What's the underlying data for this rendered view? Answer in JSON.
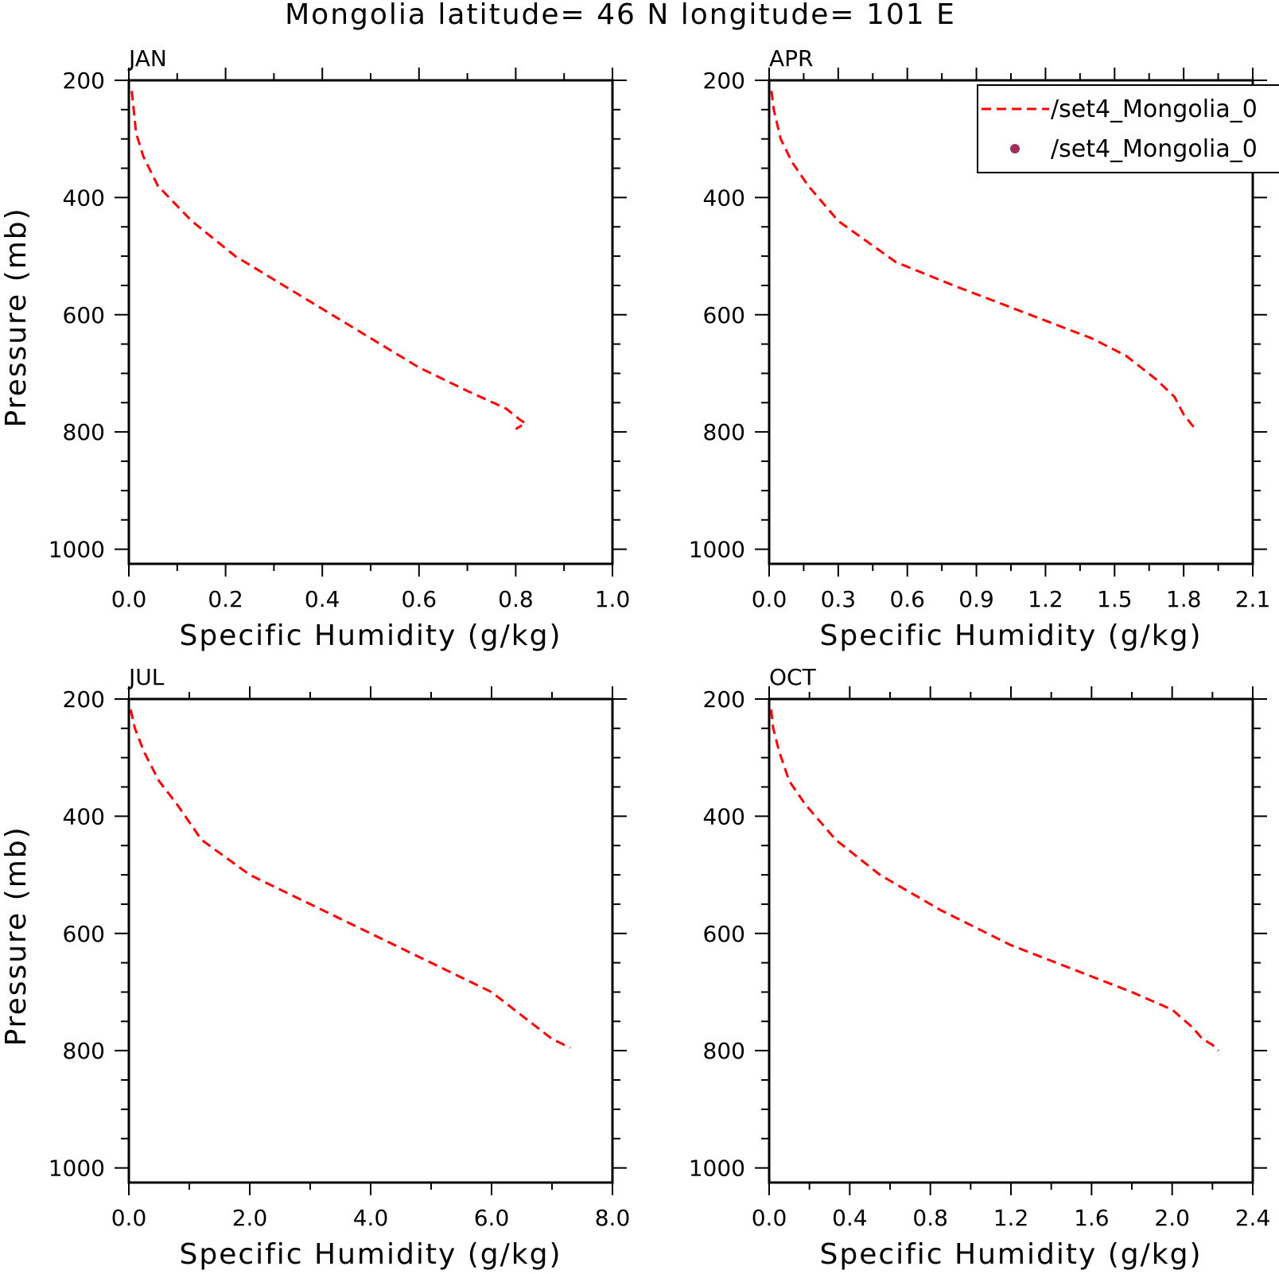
{
  "figure": {
    "title": "Mongolia  latitude= 46 N longitude= 101 E"
  },
  "legend": {
    "entries": [
      {
        "label": "/set4_Mongolia_0",
        "style": "dashed-line",
        "color": "#ff0000"
      },
      {
        "label": "/set4_Mongolia_0",
        "style": "dot",
        "color": "#a0305a"
      }
    ]
  },
  "chart_data": [
    {
      "type": "line",
      "panel": "JAN",
      "xlabel": "Specific Humidity (g/kg)",
      "ylabel": "Pressure (mb)",
      "xlim": [
        0.0,
        1.0
      ],
      "ylim": [
        1000,
        200
      ],
      "xticks": [
        "0.0",
        "0.2",
        "0.4",
        "0.6",
        "0.8",
        "1.0"
      ],
      "yticks": [
        "200",
        "400",
        "600",
        "800",
        "1000"
      ],
      "series": [
        {
          "color": "#ff0000",
          "style": "dashed",
          "points": [
            [
              0.006,
              218
            ],
            [
              0.01,
              250
            ],
            [
              0.015,
              290
            ],
            [
              0.03,
              330
            ],
            [
              0.06,
              380
            ],
            [
              0.13,
              440
            ],
            [
              0.22,
              500
            ],
            [
              0.3,
              540
            ],
            [
              0.4,
              590
            ],
            [
              0.5,
              640
            ],
            [
              0.6,
              690
            ],
            [
              0.7,
              730
            ],
            [
              0.78,
              760
            ],
            [
              0.81,
              780
            ],
            [
              0.82,
              785
            ],
            [
              0.8,
              795
            ]
          ]
        }
      ]
    },
    {
      "type": "line",
      "panel": "APR",
      "xlabel": "Specific Humidity (g/kg)",
      "ylabel": "",
      "xlim": [
        0.0,
        2.1
      ],
      "ylim": [
        1000,
        200
      ],
      "xticks": [
        "0.0",
        "0.3",
        "0.6",
        "0.9",
        "1.2",
        "1.5",
        "1.8",
        "2.1"
      ],
      "yticks": [
        "200",
        "400",
        "600",
        "800",
        "1000"
      ],
      "series": [
        {
          "color": "#ff0000",
          "style": "dashed",
          "points": [
            [
              0.01,
              218
            ],
            [
              0.02,
              250
            ],
            [
              0.05,
              300
            ],
            [
              0.1,
              340
            ],
            [
              0.17,
              380
            ],
            [
              0.3,
              440
            ],
            [
              0.55,
              510
            ],
            [
              0.8,
              550
            ],
            [
              1.0,
              580
            ],
            [
              1.2,
              610
            ],
            [
              1.4,
              640
            ],
            [
              1.55,
              670
            ],
            [
              1.68,
              710
            ],
            [
              1.76,
              740
            ],
            [
              1.8,
              770
            ],
            [
              1.84,
              790
            ],
            [
              1.86,
              795
            ]
          ]
        }
      ]
    },
    {
      "type": "line",
      "panel": "JUL",
      "xlabel": "Specific Humidity (g/kg)",
      "ylabel": "Pressure (mb)",
      "xlim": [
        0.0,
        8.0
      ],
      "ylim": [
        1000,
        200
      ],
      "xticks": [
        "0.0",
        "2.0",
        "4.0",
        "6.0",
        "8.0"
      ],
      "yticks": [
        "200",
        "400",
        "600",
        "800",
        "1000"
      ],
      "series": [
        {
          "color": "#ff0000",
          "style": "dashed",
          "points": [
            [
              0.03,
              218
            ],
            [
              0.1,
              250
            ],
            [
              0.25,
              290
            ],
            [
              0.5,
              340
            ],
            [
              0.8,
              380
            ],
            [
              1.2,
              440
            ],
            [
              2.0,
              500
            ],
            [
              3.0,
              550
            ],
            [
              4.0,
              600
            ],
            [
              5.2,
              660
            ],
            [
              6.0,
              700
            ],
            [
              6.5,
              740
            ],
            [
              7.0,
              780
            ],
            [
              7.3,
              795
            ]
          ]
        }
      ]
    },
    {
      "type": "line",
      "panel": "OCT",
      "xlabel": "Specific Humidity (g/kg)",
      "ylabel": "",
      "xlim": [
        0.0,
        2.4
      ],
      "ylim": [
        1000,
        200
      ],
      "xticks": [
        "0.0",
        "0.4",
        "0.8",
        "1.2",
        "1.6",
        "2.0",
        "2.4"
      ],
      "yticks": [
        "200",
        "400",
        "600",
        "800",
        "1000"
      ],
      "series": [
        {
          "color": "#ff0000",
          "style": "dashed",
          "points": [
            [
              0.01,
              218
            ],
            [
              0.02,
              250
            ],
            [
              0.05,
              290
            ],
            [
              0.1,
              340
            ],
            [
              0.18,
              380
            ],
            [
              0.33,
              440
            ],
            [
              0.55,
              500
            ],
            [
              0.85,
              560
            ],
            [
              1.2,
              620
            ],
            [
              1.5,
              660
            ],
            [
              1.8,
              700
            ],
            [
              2.0,
              730
            ],
            [
              2.1,
              760
            ],
            [
              2.15,
              780
            ],
            [
              2.2,
              790
            ],
            [
              2.23,
              800
            ]
          ]
        }
      ]
    }
  ]
}
